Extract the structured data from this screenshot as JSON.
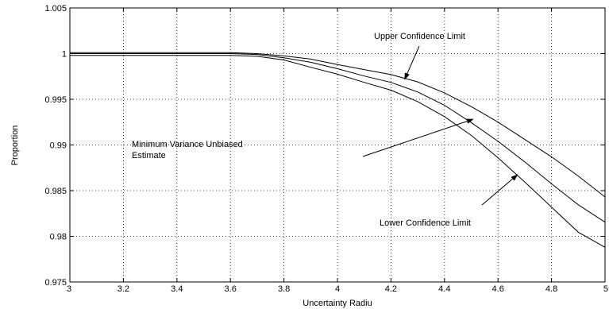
{
  "chart_data": {
    "type": "line",
    "title": "",
    "xlabel": "Uncertainty Radiu",
    "ylabel": "Proportion",
    "xlim": [
      3,
      5
    ],
    "ylim": [
      0.975,
      1.005
    ],
    "grid": true,
    "x_ticks": [
      "3",
      "3.2",
      "3.4",
      "3.6",
      "3.8",
      "4",
      "4.2",
      "4.4",
      "4.6",
      "4.8",
      "5"
    ],
    "y_ticks": [
      "0.975",
      "0.98",
      "0.985",
      "0.99",
      "0.995",
      "1",
      "1.005"
    ],
    "x": [
      3.0,
      3.2,
      3.4,
      3.6,
      3.7,
      3.8,
      3.9,
      4.0,
      4.1,
      4.2,
      4.3,
      4.4,
      4.5,
      4.6,
      4.7,
      4.8,
      4.9,
      5.0
    ],
    "series": [
      {
        "values": [
          1.0001,
          1.0001,
          1.0001,
          1.0001,
          1.0,
          0.99975,
          0.9994,
          0.9988,
          0.99825,
          0.9977,
          0.9969,
          0.9957,
          0.9942,
          0.9925,
          0.9906,
          0.9887,
          0.9866,
          0.9843
        ]
      },
      {
        "values": [
          1.0,
          1.0,
          1.0,
          1.0,
          0.9999,
          0.99955,
          0.99905,
          0.99835,
          0.99755,
          0.99685,
          0.9958,
          0.99435,
          0.99245,
          0.9904,
          0.98815,
          0.98575,
          0.98345,
          0.98155
        ]
      },
      {
        "values": [
          0.9998,
          0.9998,
          0.9998,
          0.9998,
          0.9997,
          0.9993,
          0.9985,
          0.99775,
          0.99685,
          0.996,
          0.99475,
          0.9931,
          0.99105,
          0.9886,
          0.98595,
          0.9832,
          0.98045,
          0.9788
        ]
      }
    ],
    "annotations": [
      {
        "text": "Upper Confidence Limit",
        "arrow_to": [
          4.25,
          0.9971
        ]
      },
      {
        "text": "Minimum Variance Unbiased",
        "arrow_to": [
          4.51,
          0.99285
        ]
      },
      {
        "text": "Estimate",
        "arrow_to": null
      },
      {
        "text": "Lower Confidence Limit",
        "arrow_to": [
          4.675,
          0.9868
        ]
      }
    ]
  }
}
